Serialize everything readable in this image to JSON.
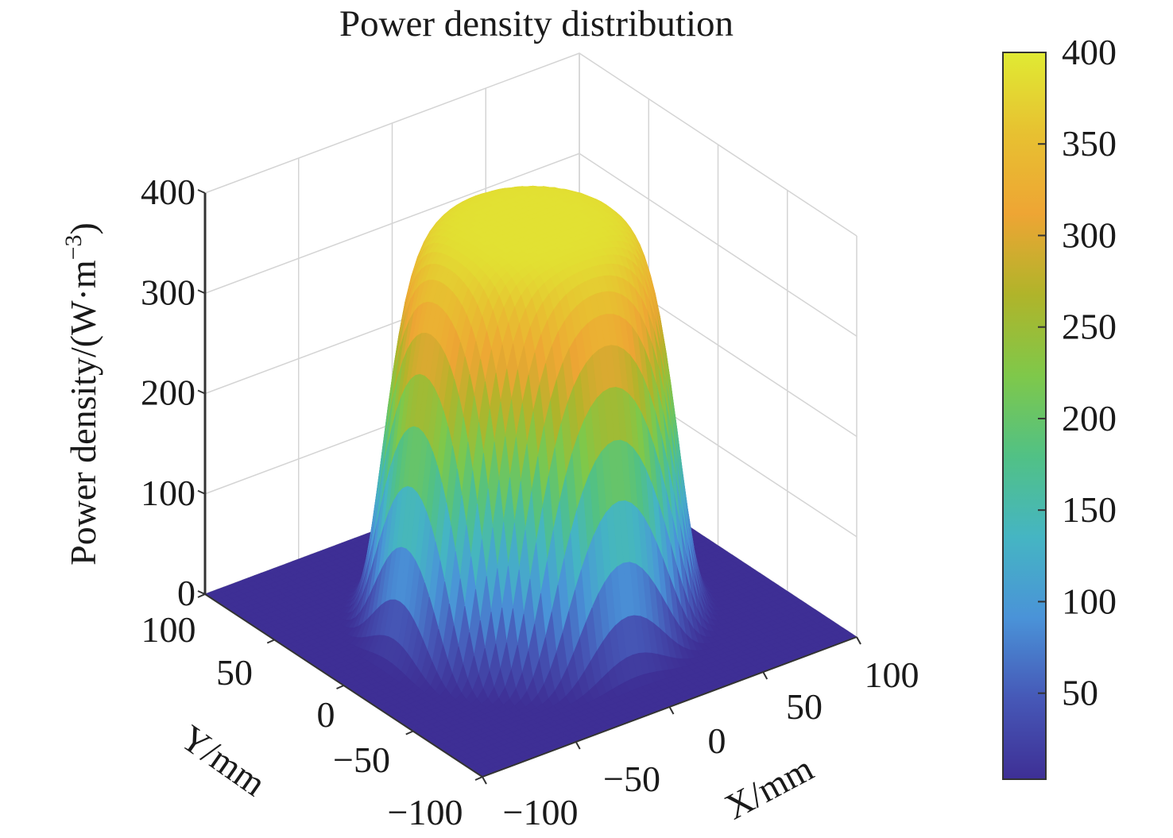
{
  "chart_data": {
    "type": "surface",
    "title": "Power density distribution",
    "xlabel": "X/mm",
    "ylabel": "Y/mm",
    "zlabel": "Power density/(W·m",
    "zlabel_exponent": "−3",
    "zlabel_close": ")",
    "xlim": [
      -100,
      100
    ],
    "ylim": [
      -100,
      100
    ],
    "zlim": [
      0,
      400
    ],
    "x_ticks": [
      "−100",
      "−50",
      "0",
      "50",
      "100"
    ],
    "x_tick_values": [
      -100,
      -50,
      0,
      50,
      100
    ],
    "y_ticks": [
      "100",
      "50",
      "0",
      "−50",
      "−100"
    ],
    "y_tick_values": [
      100,
      50,
      0,
      -50,
      -100
    ],
    "z_ticks": [
      "0",
      "100",
      "200",
      "300",
      "400"
    ],
    "z_tick_values": [
      0,
      100,
      200,
      300,
      400
    ],
    "surface": {
      "shape": "flat-top super-Gaussian",
      "peak": 390,
      "baseline": 0,
      "flat_top_radius_mm": 50,
      "half_max_radius_mm": 62,
      "edge_falloff_mm": 80
    },
    "colormap": "parula",
    "colormap_stops": [
      "#3e2f95",
      "#4658b7",
      "#4a93d8",
      "#45b5c3",
      "#51c185",
      "#7fc84a",
      "#b0b42a",
      "#eea534",
      "#e7c131",
      "#e0ea33"
    ],
    "colorbar": {
      "ticks": [
        "400",
        "350",
        "300",
        "250",
        "200",
        "150",
        "100",
        "50"
      ],
      "tick_values": [
        400,
        350,
        300,
        250,
        200,
        150,
        100,
        50
      ],
      "range": [
        3,
        400
      ],
      "location": "right"
    },
    "grid": true
  }
}
